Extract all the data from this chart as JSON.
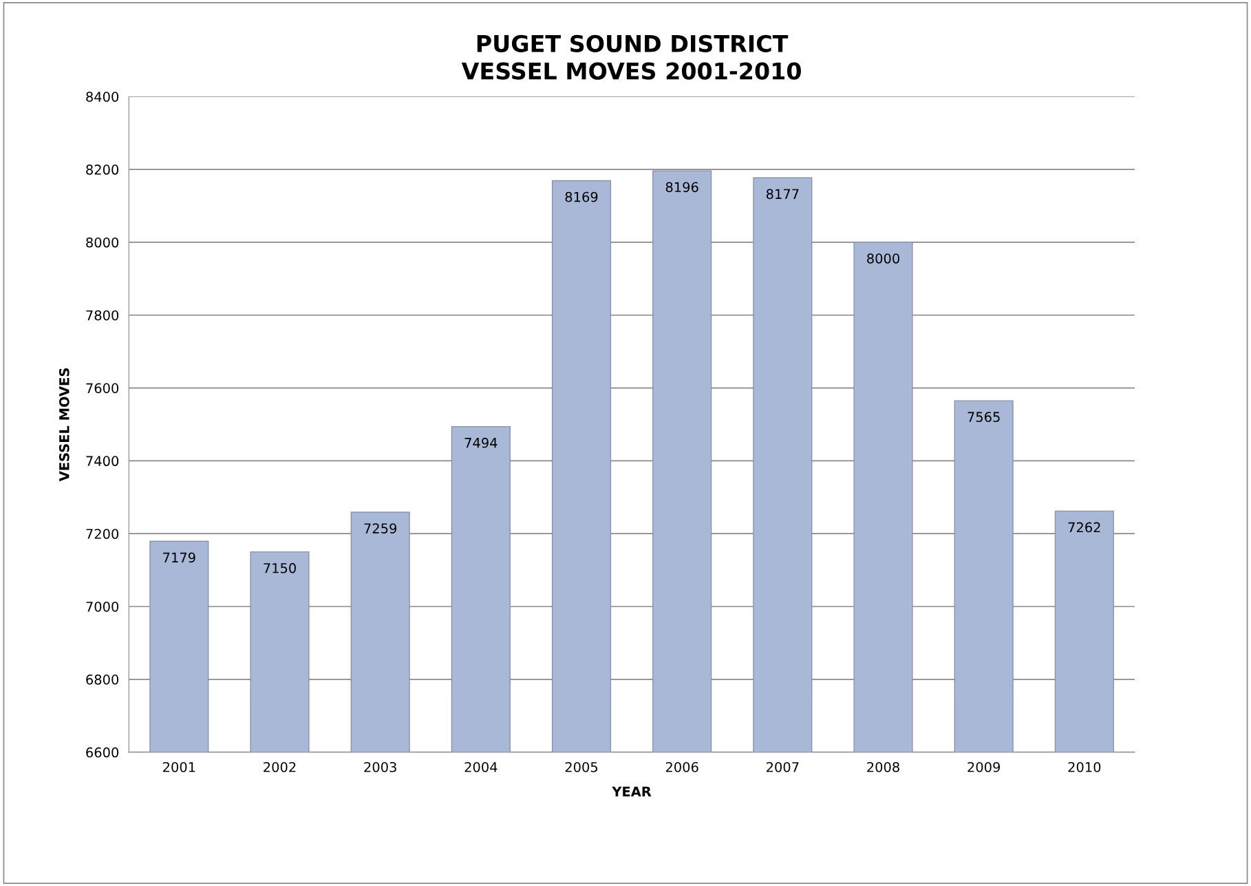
{
  "chart_data": {
    "type": "bar",
    "title": "PUGET SOUND DISTRICT\nVESSEL MOVES 2001-2010",
    "xlabel": "YEAR",
    "ylabel": "VESSEL MOVES",
    "categories": [
      "2001",
      "2002",
      "2003",
      "2004",
      "2005",
      "2006",
      "2007",
      "2008",
      "2009",
      "2010"
    ],
    "values": [
      7179,
      7150,
      7259,
      7494,
      8169,
      8196,
      8177,
      8000,
      7565,
      7262
    ],
    "color": "#a9b8d6",
    "ylim": [
      6600,
      8400
    ],
    "yticks": [
      6600,
      6800,
      7000,
      7200,
      7400,
      7600,
      7800,
      8000,
      8200,
      8400
    ],
    "grid": "y",
    "data_labels": true
  }
}
